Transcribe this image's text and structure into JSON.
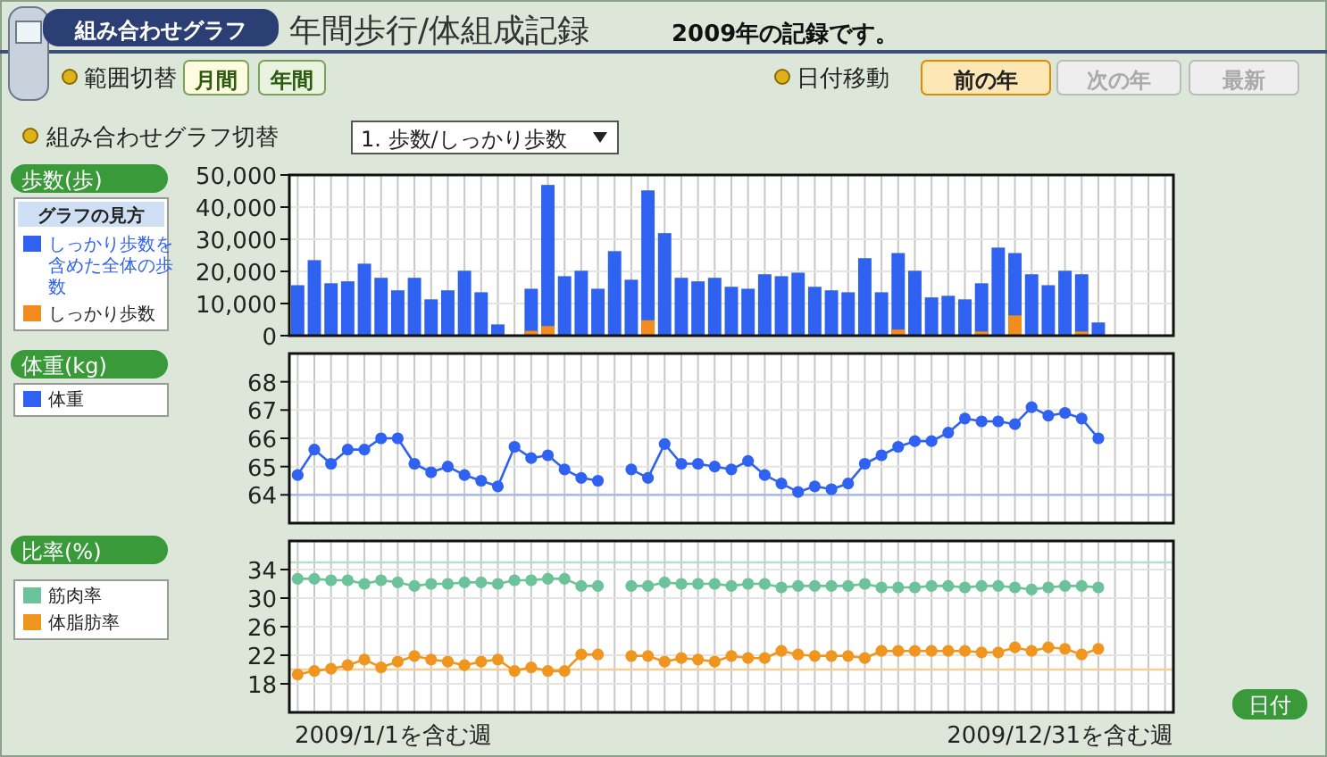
{
  "chart_data": [
    {
      "type": "bar",
      "title": "年間歩行/体組成記録",
      "subtitle": "2009年の記録です。",
      "ylabel": "歩数(歩)",
      "legend_title": "グラフの見方",
      "legend": "left",
      "grid": true,
      "annotations": [
        "組み合わせグラフ",
        "範囲切替",
        "月間",
        "年間",
        "日付移動",
        "前の年",
        "次の年",
        "最新",
        "組み合わせグラフ切替",
        "1. 歩数/しっかり歩数"
      ],
      "categories": [
        null,
        null,
        null,
        null,
        null,
        null,
        null,
        null,
        null,
        null,
        null,
        null,
        null,
        null,
        null,
        null,
        null,
        null,
        null,
        null,
        null,
        null,
        null,
        null,
        null,
        null,
        null,
        null,
        null,
        null,
        null,
        null,
        null,
        null,
        null,
        null,
        null,
        null,
        null,
        null,
        null,
        null,
        null,
        null,
        null,
        null,
        null,
        null,
        null,
        null,
        null,
        null,
        null
      ],
      "ylim": [
        0,
        50000
      ],
      "yticks": [
        0,
        {
          "value": 10000,
          "label": "10,000"
        },
        {
          "value": 20000,
          "label": "20,000"
        },
        {
          "value": 30000,
          "label": "30,000"
        },
        {
          "value": 40000,
          "label": "40,000"
        },
        {
          "value": 50000,
          "label": "50,000"
        }
      ],
      "series": [
        {
          "name": "しっかり歩数を含めた全体の歩数",
          "color": "#2f62f0",
          "values": [
            15700,
            23500,
            16300,
            16900,
            22400,
            18000,
            14100,
            18000,
            11300,
            14100,
            20200,
            13500,
            3500,
            null,
            14600,
            46900,
            18500,
            20200,
            14600,
            26300,
            17400,
            45200,
            31900,
            18000,
            16900,
            18000,
            15200,
            14600,
            19100,
            18500,
            19600,
            15200,
            14100,
            13500,
            24100,
            13500,
            25700,
            20200,
            11900,
            12400,
            11300,
            16300,
            27400,
            25700,
            19100,
            15700,
            20200,
            19100,
            4100,
            null,
            null,
            null,
            null
          ]
        },
        {
          "name": "しっかり歩数",
          "color": "#f28c1e",
          "values": [
            null,
            null,
            null,
            null,
            null,
            null,
            null,
            null,
            null,
            null,
            null,
            null,
            null,
            null,
            1500,
            3000,
            null,
            null,
            null,
            null,
            null,
            4800,
            null,
            null,
            null,
            null,
            null,
            null,
            null,
            null,
            null,
            null,
            null,
            null,
            null,
            null,
            1900,
            null,
            null,
            null,
            null,
            1300,
            null,
            6300,
            null,
            null,
            null,
            1300,
            null,
            null,
            null,
            null,
            null
          ]
        }
      ]
    },
    {
      "type": "line",
      "ylabel": "体重(kg)",
      "legend": "left",
      "grid": true,
      "marker": "circle",
      "categories": [
        null,
        null,
        null,
        null,
        null,
        null,
        null,
        null,
        null,
        null,
        null,
        null,
        null,
        null,
        null,
        null,
        null,
        null,
        null,
        null,
        null,
        null,
        null,
        null,
        null,
        null,
        null,
        null,
        null,
        null,
        null,
        null,
        null,
        null,
        null,
        null,
        null,
        null,
        null,
        null,
        null,
        null,
        null,
        null,
        null,
        null,
        null,
        null,
        null,
        null,
        null,
        null,
        null
      ],
      "ylim": [
        63,
        69
      ],
      "yticks": [
        64,
        65,
        66,
        67,
        68
      ],
      "ref_lines": [
        {
          "axis": "y",
          "value": 64,
          "color": "#9fb4f0"
        }
      ],
      "series": [
        {
          "name": "体重",
          "color": "#2f62f0",
          "values": [
            64.7,
            65.6,
            65.1,
            65.6,
            65.6,
            66.0,
            66.0,
            65.1,
            64.8,
            65.0,
            64.7,
            64.5,
            64.3,
            65.7,
            65.3,
            65.4,
            64.9,
            64.6,
            64.5,
            null,
            64.9,
            64.6,
            65.8,
            65.1,
            65.1,
            65.0,
            64.9,
            65.2,
            64.7,
            64.4,
            64.1,
            64.3,
            64.2,
            64.4,
            65.1,
            65.4,
            65.7,
            65.9,
            65.9,
            66.2,
            66.7,
            66.6,
            66.6,
            66.5,
            67.1,
            66.8,
            66.9,
            66.7,
            66.0,
            null,
            null,
            null,
            null
          ]
        }
      ]
    },
    {
      "type": "line",
      "ylabel": "比率(%)",
      "legend": "left",
      "grid": true,
      "marker": "circle",
      "annotations": [
        "2009/1/1を含む週",
        "2009/12/31を含む週",
        "日付"
      ],
      "categories": [
        null,
        null,
        null,
        null,
        null,
        null,
        null,
        null,
        null,
        null,
        null,
        null,
        null,
        null,
        null,
        null,
        null,
        null,
        null,
        null,
        null,
        null,
        null,
        null,
        null,
        null,
        null,
        null,
        null,
        null,
        null,
        null,
        null,
        null,
        null,
        null,
        null,
        null,
        null,
        null,
        null,
        null,
        null,
        null,
        null,
        null,
        null,
        null,
        null,
        null,
        null,
        null,
        null
      ],
      "ylim": [
        14,
        38
      ],
      "yticks": [
        18,
        22,
        26,
        30,
        34
      ],
      "ref_lines": [
        {
          "axis": "y",
          "value": 35,
          "color": "#b5e0c8"
        },
        {
          "axis": "y",
          "value": 20,
          "color": "#f7cf96"
        }
      ],
      "series": [
        {
          "name": "筋肉率",
          "color": "#6cc39a",
          "values": [
            32.7,
            32.7,
            32.5,
            32.5,
            32.0,
            32.5,
            32.2,
            31.7,
            32.0,
            32.0,
            32.2,
            32.2,
            32.0,
            32.5,
            32.5,
            32.7,
            32.7,
            31.7,
            31.7,
            null,
            31.7,
            31.7,
            32.2,
            32.0,
            32.0,
            32.0,
            31.7,
            32.0,
            32.0,
            31.5,
            31.7,
            31.7,
            31.7,
            31.7,
            32.0,
            31.5,
            31.5,
            31.5,
            31.7,
            31.7,
            31.5,
            31.7,
            31.7,
            31.5,
            31.2,
            31.5,
            31.7,
            31.7,
            31.5,
            null,
            null,
            null,
            null
          ]
        },
        {
          "name": "体脂肪率",
          "color": "#f0961e",
          "values": [
            19.3,
            19.8,
            20.1,
            20.6,
            21.4,
            20.3,
            21.1,
            21.9,
            21.4,
            21.1,
            20.6,
            21.1,
            21.4,
            19.8,
            20.3,
            19.8,
            19.8,
            22.1,
            22.1,
            null,
            21.9,
            21.9,
            21.1,
            21.6,
            21.4,
            21.1,
            21.9,
            21.6,
            21.6,
            22.6,
            22.1,
            21.9,
            21.9,
            21.9,
            21.6,
            22.6,
            22.6,
            22.6,
            22.6,
            22.6,
            22.6,
            22.4,
            22.4,
            23.1,
            22.6,
            23.1,
            22.9,
            22.1,
            22.9,
            null,
            null,
            null,
            null
          ]
        }
      ]
    }
  ]
}
